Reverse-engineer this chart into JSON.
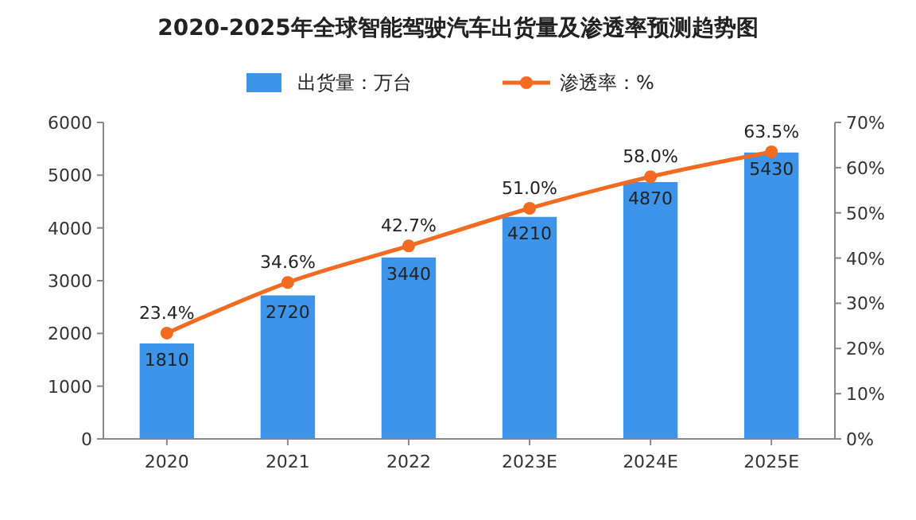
{
  "chart_data": {
    "type": "bar",
    "title": "2020-2025年全球智能驾驶汽车出货量及渗透率预测趋势图",
    "categories": [
      "2020",
      "2021",
      "2022",
      "2023E",
      "2024E",
      "2025E"
    ],
    "series": [
      {
        "name": "出货量：万台",
        "color": "#3d94e8",
        "values": [
          1810,
          2720,
          3440,
          4210,
          4870,
          5430
        ]
      },
      {
        "name": "渗透率：%",
        "type": "line",
        "axis": "y2",
        "color": "#f26b21",
        "values": [
          23.4,
          34.6,
          42.7,
          51.0,
          58.0,
          63.5
        ],
        "value_labels": [
          "23.4%",
          "34.6%",
          "42.7%",
          "51.0%",
          "58.0%",
          "63.5%"
        ]
      }
    ],
    "ylim": [
      0,
      6000
    ],
    "yticks": [
      0,
      1000,
      2000,
      3000,
      4000,
      5000,
      6000
    ],
    "y2lim": [
      0,
      70
    ],
    "y2ticks": [
      {
        "value": 0,
        "label": "0%"
      },
      {
        "value": 10,
        "label": "10%"
      },
      {
        "value": 20,
        "label": "20%"
      },
      {
        "value": 30,
        "label": "30%"
      },
      {
        "value": 40,
        "label": "40%"
      },
      {
        "value": 50,
        "label": "50%"
      },
      {
        "value": 60,
        "label": "60%"
      },
      {
        "value": 70,
        "label": "70%"
      }
    ],
    "data_labels": true,
    "legend": "top",
    "grid": false,
    "marker": "circle",
    "line_style": "solid"
  }
}
